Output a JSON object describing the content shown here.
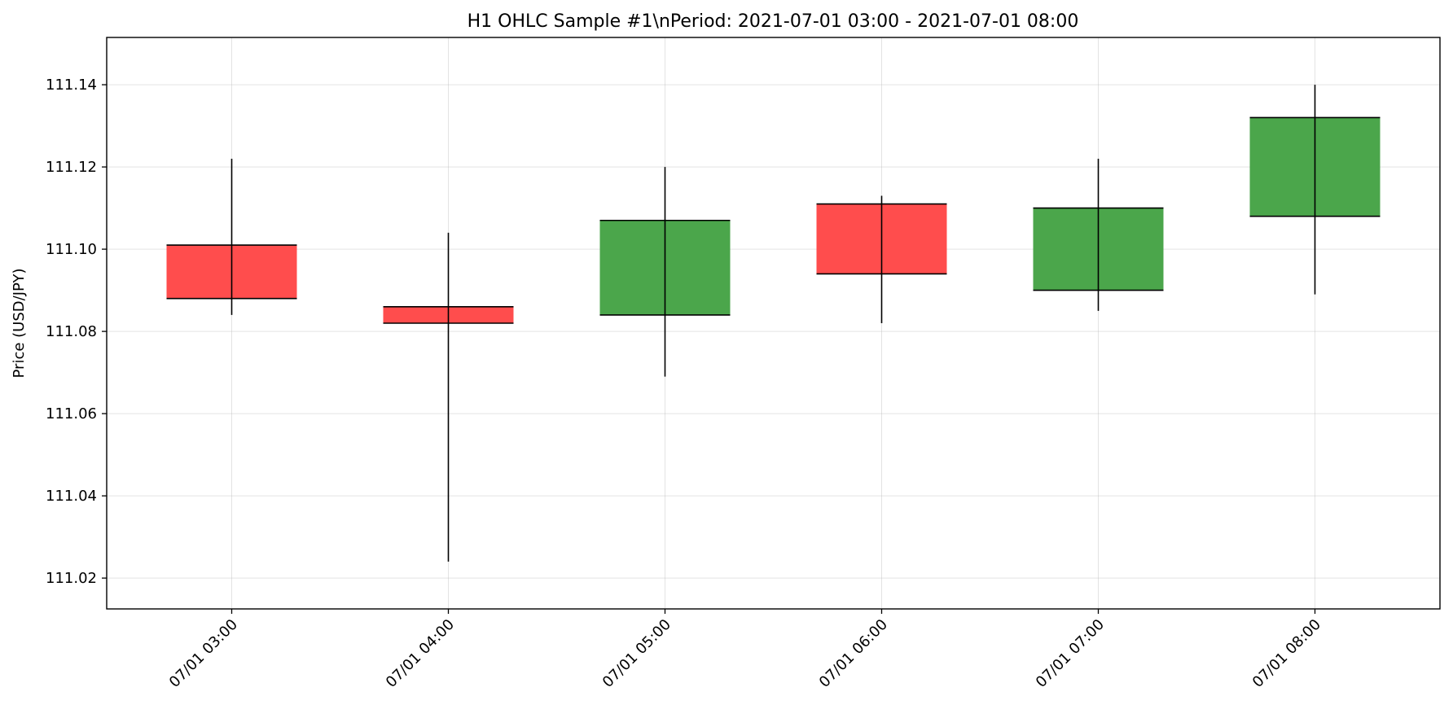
{
  "chart_data": {
    "type": "candlestick",
    "title": "H1 OHLC Sample #1\\nPeriod: 2021-07-01 03:00 - 2021-07-01 08:00",
    "xlabel": "",
    "ylabel": "Price (USD/JPY)",
    "ylim": [
      111.0125,
      111.1515
    ],
    "yticks": [
      111.02,
      111.04,
      111.06,
      111.08,
      111.1,
      111.12,
      111.14
    ],
    "ytick_labels": [
      "111.02",
      "111.04",
      "111.06",
      "111.08",
      "111.10",
      "111.12",
      "111.14"
    ],
    "categories": [
      "07/01 03:00",
      "07/01 04:00",
      "07/01 05:00",
      "07/01 06:00",
      "07/01 07:00",
      "07/01 08:00"
    ],
    "candles": [
      {
        "x": "07/01 03:00",
        "open": 111.101,
        "high": 111.122,
        "low": 111.084,
        "close": 111.088
      },
      {
        "x": "07/01 04:00",
        "open": 111.086,
        "high": 111.104,
        "low": 111.024,
        "close": 111.082
      },
      {
        "x": "07/01 05:00",
        "open": 111.084,
        "high": 111.12,
        "low": 111.069,
        "close": 111.107
      },
      {
        "x": "07/01 06:00",
        "open": 111.111,
        "high": 111.113,
        "low": 111.082,
        "close": 111.094
      },
      {
        "x": "07/01 07:00",
        "open": 111.09,
        "high": 111.122,
        "low": 111.085,
        "close": 111.11
      },
      {
        "x": "07/01 08:00",
        "open": 111.108,
        "high": 111.14,
        "low": 111.089,
        "close": 111.132
      }
    ],
    "colors": {
      "up": "#4ba64b",
      "down": "#ff4d4d",
      "edge": "#000000"
    },
    "grid": true,
    "legend": "none"
  }
}
